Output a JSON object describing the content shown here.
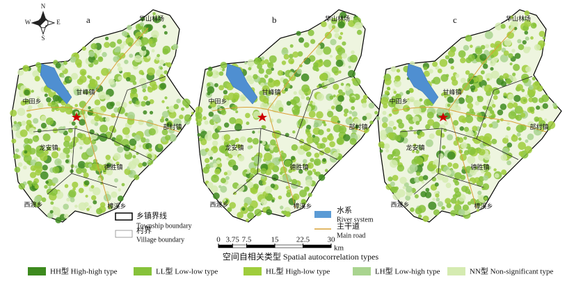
{
  "panels": [
    "a",
    "b",
    "c"
  ],
  "compass": {
    "north": "N",
    "south": "S",
    "west": "W",
    "east": "E"
  },
  "places": [
    "华山林场",
    "甘峰镇",
    "中田乡",
    "龙安镇",
    "德胜镇",
    "西渡乡",
    "樟溪乡",
    "部村镇"
  ],
  "boundary_legend": {
    "township": "乡镇界线",
    "township_en": "Township boundary",
    "village": "村界",
    "village_en": "Village boundary"
  },
  "feature_legend": {
    "river": "水系",
    "river_en": "River system",
    "road": "主干道",
    "road_en": "Main road"
  },
  "scale_bar": {
    "ticks": [
      0,
      3.75,
      7.5,
      15,
      22.5,
      30
    ],
    "unit": "km"
  },
  "legend_title": "空间自相关类型 Spatial autocorrelation types",
  "legend": [
    {
      "name": "HH型 High-high type",
      "color": "#3d8a1e"
    },
    {
      "name": "LL型 Low-low type",
      "color": "#86c23a"
    },
    {
      "name": "HL型 High-low type",
      "color": "#9fcd3c"
    },
    {
      "name": "LH型 Low-high type",
      "color": "#a9d48f"
    },
    {
      "name": "NN型 Non-significant type",
      "color": "#d5ebb1"
    }
  ]
}
